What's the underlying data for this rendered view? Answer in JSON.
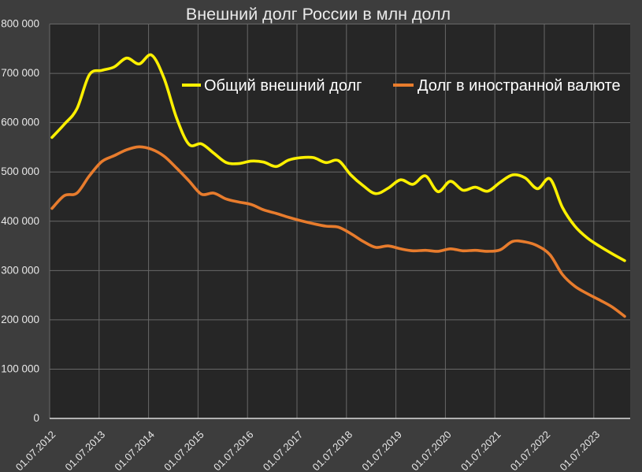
{
  "title": "Внешний долг России в млн долл",
  "legend": {
    "items": [
      {
        "label": "Общий внешний долг",
        "series": "total"
      },
      {
        "label": "Долг в иностранной валюте",
        "series": "fx"
      }
    ]
  },
  "colors": {
    "background": "#3d3d3d",
    "plot_background": "#262626",
    "gridline": "#686868",
    "axis_line": "#dcdcdc",
    "text": "#e8e8e8",
    "title_text": "#eaeaea",
    "total_series": "#fdf000",
    "fx_series": "#e87c2d"
  },
  "chart_data": {
    "type": "line",
    "title": "Внешний долг России в млн долл",
    "xlabel": "",
    "ylabel": "",
    "y_axis": {
      "min": 0,
      "max": 800000,
      "step": 100000,
      "tick_labels": [
        "0",
        "100 000",
        "200 000",
        "300 000",
        "400 000",
        "500 000",
        "600 000",
        "700 000",
        "800 000"
      ]
    },
    "x_tick_labels": [
      "01.07.2012",
      "01.07.2013",
      "01.07.2014",
      "01.07.2015",
      "01.07.2016",
      "01.07.2017",
      "01.07.2018",
      "01.07.2019",
      "01.07.2020",
      "01.07.2021",
      "01.07.2022",
      "01.07.2023"
    ],
    "grid": true,
    "legend_position": "top-inside",
    "categories": [
      "01.07.2012",
      "01.10.2012",
      "01.01.2013",
      "01.04.2013",
      "01.07.2013",
      "01.10.2013",
      "01.01.2014",
      "01.04.2014",
      "01.07.2014",
      "01.10.2014",
      "01.01.2015",
      "01.04.2015",
      "01.07.2015",
      "01.10.2015",
      "01.01.2016",
      "01.04.2016",
      "01.07.2016",
      "01.10.2016",
      "01.01.2017",
      "01.04.2017",
      "01.07.2017",
      "01.10.2017",
      "01.01.2018",
      "01.04.2018",
      "01.07.2018",
      "01.10.2018",
      "01.01.2019",
      "01.04.2019",
      "01.07.2019",
      "01.10.2019",
      "01.01.2020",
      "01.04.2020",
      "01.07.2020",
      "01.10.2020",
      "01.01.2021",
      "01.04.2021",
      "01.07.2021",
      "01.10.2021",
      "01.01.2022",
      "01.04.2022",
      "01.07.2022",
      "01.10.2022",
      "01.01.2023",
      "01.04.2023",
      "01.07.2023",
      "01.10.2023",
      "01.01.2024"
    ],
    "series": [
      {
        "name": "Общий внешний долг",
        "color": "#fdf000",
        "values": [
          570000,
          597000,
          628000,
          697000,
          706000,
          713000,
          731000,
          719000,
          737000,
          690000,
          610000,
          556000,
          557000,
          538000,
          519000,
          517000,
          522000,
          520000,
          511000,
          524000,
          529000,
          529000,
          519000,
          523000,
          494000,
          472000,
          456000,
          467000,
          484000,
          475000,
          492000,
          460000,
          481000,
          463000,
          469000,
          461000,
          479000,
          494000,
          488000,
          466000,
          486000,
          428000,
          390000,
          366000,
          349000,
          334000,
          320000
        ]
      },
      {
        "name": "Долг в иностранной валюте",
        "color": "#e87c2d",
        "values": [
          426000,
          452000,
          457000,
          492000,
          521000,
          533000,
          545000,
          551000,
          546000,
          532000,
          508000,
          482000,
          455000,
          457000,
          445000,
          439000,
          434000,
          423000,
          416000,
          408000,
          401000,
          395000,
          390000,
          388000,
          375000,
          359000,
          347000,
          350000,
          344000,
          340000,
          341000,
          339000,
          344000,
          340000,
          341000,
          339000,
          342000,
          359000,
          358000,
          350000,
          332000,
          292000,
          268000,
          253000,
          240000,
          226000,
          207000
        ]
      }
    ]
  }
}
